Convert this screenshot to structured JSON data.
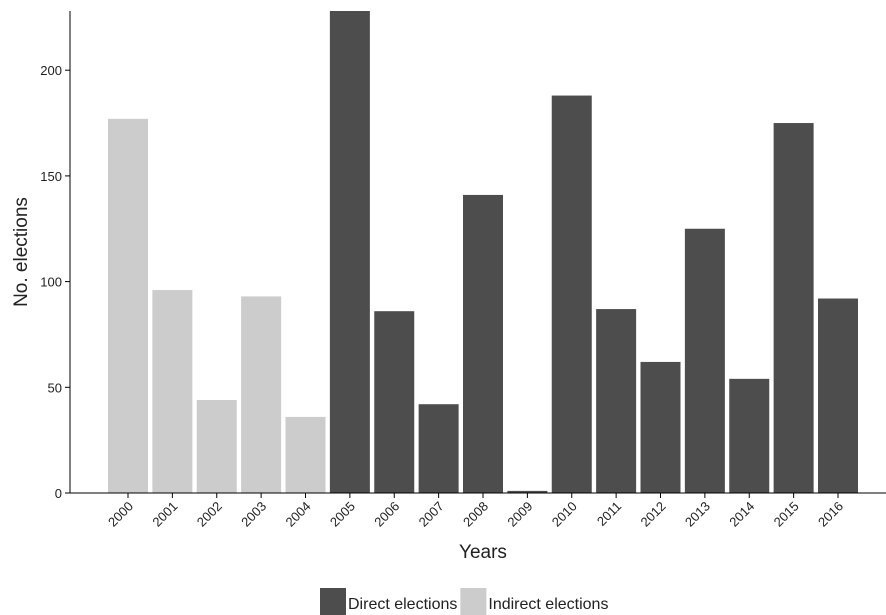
{
  "chart_data": {
    "type": "bar",
    "x_label": "Years",
    "y_label": "No. elections",
    "categories": [
      "2000",
      "2001",
      "2002",
      "2003",
      "2004",
      "2005",
      "2006",
      "2007",
      "2008",
      "2009",
      "2010",
      "2011",
      "2012",
      "2013",
      "2014",
      "2015",
      "2016"
    ],
    "series": [
      {
        "name": "Direct elections",
        "color": "#4d4d4d",
        "values": [
          null,
          null,
          null,
          null,
          null,
          228,
          86,
          42,
          141,
          1,
          188,
          87,
          62,
          125,
          54,
          175,
          92
        ]
      },
      {
        "name": "Indirect elections",
        "color": "#cccccc",
        "values": [
          177,
          96,
          44,
          93,
          36,
          null,
          null,
          null,
          null,
          null,
          null,
          null,
          null,
          null,
          null,
          null,
          null
        ]
      }
    ],
    "ylim": [
      0,
      228
    ],
    "yticks": [
      0,
      50,
      100,
      150,
      200
    ],
    "legend": "bottom"
  }
}
